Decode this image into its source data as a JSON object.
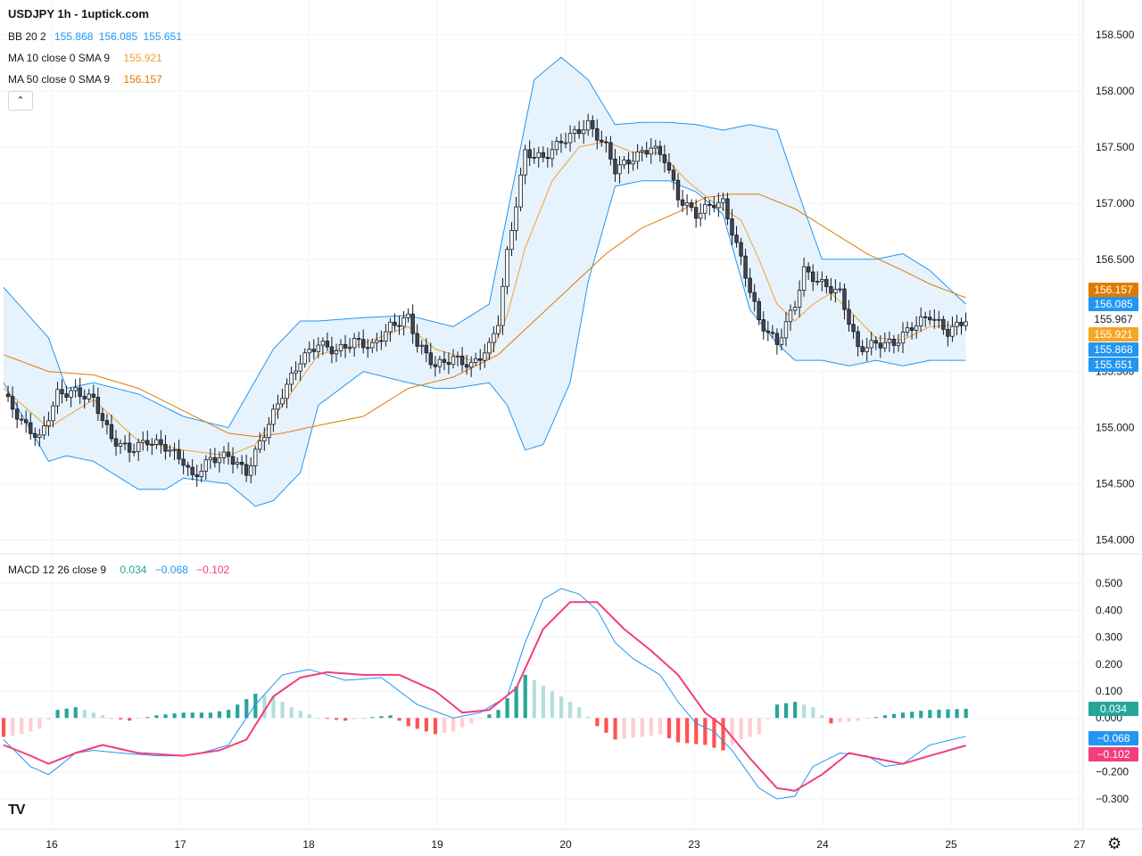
{
  "header": {
    "title": "USDJPY 1h - 1uptick.com",
    "bb_name": "BB 20 2",
    "bb_vals": [
      "155.868",
      "156.085",
      "155.651"
    ],
    "ma10_name": "MA 10 close 0 SMA 9",
    "ma10_val": "155.921",
    "ma50_name": "MA 50 close 0 SMA 9",
    "ma50_val": "156.157",
    "macd_name": "MACD 12 26 close 9",
    "macd_vals": [
      "0.034",
      "−0.068",
      "−0.102"
    ],
    "collapse_icon": "chevron-up-icon",
    "logo": "TV"
  },
  "colors": {
    "up": "#ffffff",
    "down": "#434651",
    "bb": "#2196f3",
    "bb_fill": "#e3f2fd",
    "ma10": "#f0a030",
    "ma50": "#e07b00",
    "macd": "#2196f3",
    "signal": "#f23d7e",
    "hist_pos_grow": "#26a69a",
    "hist_pos_fall": "#b2dfdb",
    "hist_neg_grow": "#ff5252",
    "hist_neg_fall": "#ffcdd2"
  },
  "chart_data": {
    "type": "candlestick",
    "symbol": "USDJPY",
    "timeframe": "1h",
    "x_labels": [
      "16",
      "17",
      "18",
      "19",
      "20",
      "23",
      "24",
      "25",
      "27"
    ],
    "price_axis": {
      "ticks": [
        "158.500",
        "158.000",
        "157.500",
        "157.000",
        "156.500",
        "155.500",
        "155.000",
        "154.500",
        "154.000"
      ],
      "range": [
        153.98,
        158.54
      ]
    },
    "price_badges": [
      {
        "label": "156.157",
        "color": "#e07b00"
      },
      {
        "label": "156.085",
        "color": "#2196f3"
      },
      {
        "label": "155.967",
        "color": "#ffffff"
      },
      {
        "label": "155.921",
        "color": "#f5a623"
      },
      {
        "label": "155.868",
        "color": "#2196f3"
      },
      {
        "label": "155.651",
        "color": "#2196f3"
      }
    ],
    "macd_axis": {
      "ticks": [
        "0.500",
        "0.400",
        "0.300",
        "0.200",
        "0.100",
        "0.000",
        "−0.200",
        "−0.300"
      ],
      "range": [
        -0.33,
        0.53
      ]
    },
    "macd_badges": [
      {
        "label": "0.034",
        "color": "#26a69a"
      },
      {
        "label": "−0.068",
        "color": "#2196f3"
      },
      {
        "label": "−0.102",
        "color": "#f23d7e"
      }
    ],
    "close_path": [
      [
        0,
        155.3
      ],
      [
        4,
        155.05
      ],
      [
        8,
        154.9
      ],
      [
        12,
        155.3
      ],
      [
        16,
        155.32
      ],
      [
        20,
        155.25
      ],
      [
        24,
        154.9
      ],
      [
        28,
        154.8
      ],
      [
        32,
        154.88
      ],
      [
        36,
        154.83
      ],
      [
        40,
        154.7
      ],
      [
        42,
        154.55
      ],
      [
        46,
        154.72
      ],
      [
        50,
        154.75
      ],
      [
        54,
        154.6
      ],
      [
        58,
        154.95
      ],
      [
        62,
        155.3
      ],
      [
        66,
        155.6
      ],
      [
        70,
        155.75
      ],
      [
        74,
        155.68
      ],
      [
        78,
        155.77
      ],
      [
        82,
        155.72
      ],
      [
        86,
        155.9
      ],
      [
        90,
        155.98
      ],
      [
        92,
        155.75
      ],
      [
        96,
        155.55
      ],
      [
        100,
        155.62
      ],
      [
        104,
        155.55
      ],
      [
        108,
        155.72
      ],
      [
        110,
        155.95
      ],
      [
        112,
        156.55
      ],
      [
        114,
        157.0
      ],
      [
        116,
        157.45
      ],
      [
        120,
        157.4
      ],
      [
        124,
        157.55
      ],
      [
        128,
        157.65
      ],
      [
        130,
        157.7
      ],
      [
        134,
        157.5
      ],
      [
        136,
        157.3
      ],
      [
        140,
        157.4
      ],
      [
        144,
        157.5
      ],
      [
        147,
        157.4
      ],
      [
        150,
        157.05
      ],
      [
        154,
        156.9
      ],
      [
        158,
        157.0
      ],
      [
        160,
        157.0
      ],
      [
        164,
        156.5
      ],
      [
        168,
        155.95
      ],
      [
        172,
        155.75
      ],
      [
        176,
        156.1
      ],
      [
        178,
        156.4
      ],
      [
        182,
        156.28
      ],
      [
        186,
        156.2
      ],
      [
        190,
        155.7
      ],
      [
        194,
        155.75
      ],
      [
        198,
        155.75
      ],
      [
        202,
        155.9
      ],
      [
        206,
        156.0
      ],
      [
        210,
        155.85
      ],
      [
        214,
        155.967
      ]
    ],
    "bb_upper_path": [
      [
        0,
        156.25
      ],
      [
        10,
        155.8
      ],
      [
        14,
        155.35
      ],
      [
        20,
        155.4
      ],
      [
        30,
        155.3
      ],
      [
        40,
        155.1
      ],
      [
        50,
        155.0
      ],
      [
        60,
        155.7
      ],
      [
        66,
        155.95
      ],
      [
        70,
        155.95
      ],
      [
        80,
        155.98
      ],
      [
        90,
        156.0
      ],
      [
        100,
        155.9
      ],
      [
        108,
        156.1
      ],
      [
        114,
        157.3
      ],
      [
        118,
        158.1
      ],
      [
        124,
        158.3
      ],
      [
        130,
        158.1
      ],
      [
        136,
        157.7
      ],
      [
        142,
        157.72
      ],
      [
        148,
        157.72
      ],
      [
        154,
        157.7
      ],
      [
        160,
        157.65
      ],
      [
        166,
        157.7
      ],
      [
        172,
        157.65
      ],
      [
        178,
        156.95
      ],
      [
        182,
        156.5
      ],
      [
        186,
        156.5
      ],
      [
        194,
        156.5
      ],
      [
        200,
        156.55
      ],
      [
        206,
        156.4
      ],
      [
        214,
        156.1
      ]
    ],
    "bb_lower_path": [
      [
        0,
        155.4
      ],
      [
        10,
        154.7
      ],
      [
        14,
        154.75
      ],
      [
        20,
        154.7
      ],
      [
        30,
        154.45
      ],
      [
        36,
        154.45
      ],
      [
        40,
        154.55
      ],
      [
        50,
        154.5
      ],
      [
        56,
        154.3
      ],
      [
        60,
        154.35
      ],
      [
        66,
        154.6
      ],
      [
        70,
        155.2
      ],
      [
        80,
        155.5
      ],
      [
        90,
        155.4
      ],
      [
        96,
        155.35
      ],
      [
        100,
        155.35
      ],
      [
        108,
        155.4
      ],
      [
        112,
        155.2
      ],
      [
        116,
        154.8
      ],
      [
        120,
        154.85
      ],
      [
        126,
        155.4
      ],
      [
        130,
        156.3
      ],
      [
        136,
        157.15
      ],
      [
        142,
        157.2
      ],
      [
        148,
        157.2
      ],
      [
        154,
        157.1
      ],
      [
        160,
        156.9
      ],
      [
        166,
        156.05
      ],
      [
        172,
        155.75
      ],
      [
        176,
        155.6
      ],
      [
        182,
        155.6
      ],
      [
        188,
        155.55
      ],
      [
        194,
        155.6
      ],
      [
        200,
        155.55
      ],
      [
        206,
        155.6
      ],
      [
        214,
        155.6
      ]
    ],
    "ma10_path": [
      [
        0,
        155.35
      ],
      [
        10,
        155.0
      ],
      [
        20,
        155.25
      ],
      [
        30,
        154.88
      ],
      [
        40,
        154.8
      ],
      [
        50,
        154.75
      ],
      [
        56,
        154.85
      ],
      [
        62,
        155.2
      ],
      [
        70,
        155.65
      ],
      [
        80,
        155.75
      ],
      [
        90,
        155.9
      ],
      [
        96,
        155.7
      ],
      [
        104,
        155.6
      ],
      [
        108,
        155.62
      ],
      [
        112,
        156.0
      ],
      [
        116,
        156.6
      ],
      [
        122,
        157.2
      ],
      [
        128,
        157.5
      ],
      [
        134,
        157.55
      ],
      [
        140,
        157.45
      ],
      [
        146,
        157.45
      ],
      [
        152,
        157.2
      ],
      [
        158,
        157.0
      ],
      [
        164,
        156.85
      ],
      [
        168,
        156.5
      ],
      [
        172,
        156.1
      ],
      [
        176,
        155.95
      ],
      [
        180,
        156.1
      ],
      [
        184,
        156.2
      ],
      [
        188,
        156.05
      ],
      [
        194,
        155.8
      ],
      [
        200,
        155.78
      ],
      [
        206,
        155.9
      ],
      [
        214,
        155.921
      ]
    ],
    "ma50_path": [
      [
        0,
        155.65
      ],
      [
        10,
        155.5
      ],
      [
        20,
        155.47
      ],
      [
        30,
        155.35
      ],
      [
        40,
        155.15
      ],
      [
        50,
        154.95
      ],
      [
        56,
        154.92
      ],
      [
        62,
        154.95
      ],
      [
        70,
        155.02
      ],
      [
        80,
        155.1
      ],
      [
        90,
        155.35
      ],
      [
        100,
        155.45
      ],
      [
        110,
        155.65
      ],
      [
        118,
        155.95
      ],
      [
        126,
        156.25
      ],
      [
        134,
        156.55
      ],
      [
        142,
        156.78
      ],
      [
        150,
        156.92
      ],
      [
        156,
        157.05
      ],
      [
        162,
        157.08
      ],
      [
        168,
        157.08
      ],
      [
        176,
        156.95
      ],
      [
        184,
        156.75
      ],
      [
        192,
        156.55
      ],
      [
        200,
        156.4
      ],
      [
        206,
        156.28
      ],
      [
        214,
        156.157
      ]
    ],
    "macd_line_path": [
      [
        0,
        -0.08
      ],
      [
        6,
        -0.18
      ],
      [
        10,
        -0.21
      ],
      [
        16,
        -0.13
      ],
      [
        20,
        -0.12
      ],
      [
        26,
        -0.13
      ],
      [
        34,
        -0.14
      ],
      [
        40,
        -0.14
      ],
      [
        44,
        -0.13
      ],
      [
        50,
        -0.1
      ],
      [
        56,
        0.05
      ],
      [
        62,
        0.16
      ],
      [
        68,
        0.18
      ],
      [
        76,
        0.14
      ],
      [
        84,
        0.15
      ],
      [
        92,
        0.05
      ],
      [
        100,
        0.0
      ],
      [
        106,
        0.02
      ],
      [
        112,
        0.08
      ],
      [
        116,
        0.28
      ],
      [
        120,
        0.44
      ],
      [
        124,
        0.48
      ],
      [
        128,
        0.46
      ],
      [
        132,
        0.4
      ],
      [
        136,
        0.28
      ],
      [
        140,
        0.22
      ],
      [
        146,
        0.16
      ],
      [
        150,
        0.06
      ],
      [
        154,
        -0.02
      ],
      [
        158,
        -0.05
      ],
      [
        162,
        -0.12
      ],
      [
        168,
        -0.26
      ],
      [
        172,
        -0.3
      ],
      [
        176,
        -0.29
      ],
      [
        180,
        -0.18
      ],
      [
        186,
        -0.13
      ],
      [
        192,
        -0.14
      ],
      [
        196,
        -0.18
      ],
      [
        200,
        -0.17
      ],
      [
        206,
        -0.1
      ],
      [
        214,
        -0.068
      ]
    ],
    "signal_line_path": [
      [
        0,
        -0.1
      ],
      [
        6,
        -0.14
      ],
      [
        10,
        -0.17
      ],
      [
        16,
        -0.13
      ],
      [
        22,
        -0.1
      ],
      [
        30,
        -0.13
      ],
      [
        40,
        -0.14
      ],
      [
        48,
        -0.12
      ],
      [
        54,
        -0.08
      ],
      [
        60,
        0.08
      ],
      [
        66,
        0.15
      ],
      [
        72,
        0.17
      ],
      [
        80,
        0.16
      ],
      [
        88,
        0.16
      ],
      [
        96,
        0.1
      ],
      [
        102,
        0.02
      ],
      [
        108,
        0.03
      ],
      [
        114,
        0.11
      ],
      [
        120,
        0.33
      ],
      [
        126,
        0.43
      ],
      [
        132,
        0.43
      ],
      [
        138,
        0.33
      ],
      [
        144,
        0.25
      ],
      [
        150,
        0.16
      ],
      [
        156,
        0.02
      ],
      [
        160,
        -0.03
      ],
      [
        166,
        -0.15
      ],
      [
        172,
        -0.26
      ],
      [
        176,
        -0.27
      ],
      [
        182,
        -0.21
      ],
      [
        188,
        -0.13
      ],
      [
        194,
        -0.15
      ],
      [
        200,
        -0.17
      ],
      [
        206,
        -0.14
      ],
      [
        214,
        -0.102
      ]
    ],
    "histogram_path": [
      [
        0,
        -0.07
      ],
      [
        4,
        -0.06
      ],
      [
        8,
        -0.04
      ],
      [
        12,
        0.03
      ],
      [
        16,
        0.04
      ],
      [
        20,
        0.02
      ],
      [
        24,
        0.0
      ],
      [
        28,
        -0.01
      ],
      [
        34,
        0.01
      ],
      [
        40,
        0.02
      ],
      [
        46,
        0.02
      ],
      [
        50,
        0.03
      ],
      [
        56,
        0.09
      ],
      [
        60,
        0.08
      ],
      [
        64,
        0.04
      ],
      [
        70,
        0.0
      ],
      [
        76,
        -0.01
      ],
      [
        80,
        0.0
      ],
      [
        86,
        0.01
      ],
      [
        90,
        -0.03
      ],
      [
        96,
        -0.06
      ],
      [
        100,
        -0.05
      ],
      [
        104,
        -0.02
      ],
      [
        110,
        0.03
      ],
      [
        116,
        0.16
      ],
      [
        120,
        0.12
      ],
      [
        124,
        0.08
      ],
      [
        128,
        0.04
      ],
      [
        132,
        -0.03
      ],
      [
        136,
        -0.08
      ],
      [
        142,
        -0.07
      ],
      [
        146,
        -0.06
      ],
      [
        150,
        -0.09
      ],
      [
        156,
        -0.1
      ],
      [
        160,
        -0.12
      ],
      [
        164,
        -0.08
      ],
      [
        168,
        -0.06
      ],
      [
        172,
        0.05
      ],
      [
        176,
        0.06
      ],
      [
        180,
        0.04
      ],
      [
        184,
        -0.02
      ],
      [
        190,
        -0.01
      ],
      [
        196,
        0.01
      ],
      [
        200,
        0.02
      ],
      [
        206,
        0.03
      ],
      [
        214,
        0.034
      ]
    ]
  }
}
